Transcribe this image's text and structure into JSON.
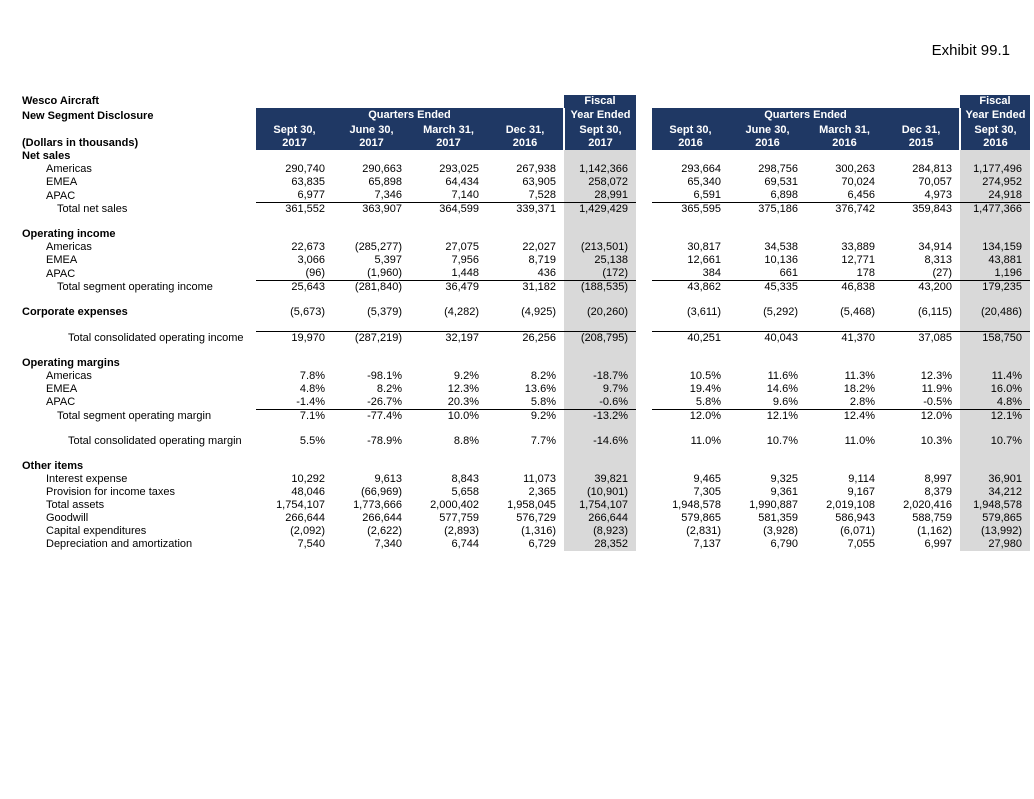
{
  "page": {
    "exhibit_label": "Exhibit 99.1"
  },
  "colors": {
    "header_navy": "#1f3864",
    "fiscal_gray": "#d9d9d9"
  },
  "table": {
    "title_lines": [
      "Wesco Aircraft",
      "New Segment Disclosure",
      "(Dollars in thousands)"
    ],
    "groups": [
      {
        "fiscal_word": "Fiscal",
        "year_ended_label": "Year Ended",
        "quarters_label": "Quarters Ended",
        "quarter_columns": [
          [
            "Sept 30,",
            "2017"
          ],
          [
            "June 30,",
            "2017"
          ],
          [
            "March 31,",
            "2017"
          ],
          [
            "Dec 31,",
            "2016"
          ]
        ],
        "fiscal_column": [
          "Sept 30,",
          "2017"
        ]
      },
      {
        "fiscal_word": "Fiscal",
        "year_ended_label": "Year Ended",
        "quarters_label": "Quarters Ended",
        "quarter_columns": [
          [
            "Sept 30,",
            "2016"
          ],
          [
            "June 30,",
            "2016"
          ],
          [
            "March 31,",
            "2016"
          ],
          [
            "Dec 31,",
            "2015"
          ]
        ],
        "fiscal_column": [
          "Sept 30,",
          "2016"
        ]
      }
    ],
    "rows": [
      {
        "label": "Net sales",
        "bold": true,
        "indent": 0
      },
      {
        "label": "Americas",
        "indent": 1,
        "values": [
          "290,740",
          "290,663",
          "293,025",
          "267,938",
          "1,142,366",
          "293,664",
          "298,756",
          "300,263",
          "284,813",
          "1,177,496"
        ]
      },
      {
        "label": "EMEA",
        "indent": 1,
        "values": [
          "63,835",
          "65,898",
          "64,434",
          "63,905",
          "258,072",
          "65,340",
          "69,531",
          "70,024",
          "70,057",
          "274,952"
        ]
      },
      {
        "label": "APAC",
        "indent": 1,
        "values": [
          "6,977",
          "7,346",
          "7,140",
          "7,528",
          "28,991",
          "6,591",
          "6,898",
          "6,456",
          "4,973",
          "24,918"
        ]
      },
      {
        "label": "Total net sales",
        "indent": 2,
        "topBorder": true,
        "values": [
          "361,552",
          "363,907",
          "364,599",
          "339,371",
          "1,429,429",
          "365,595",
          "375,186",
          "376,742",
          "359,843",
          "1,477,366"
        ]
      },
      {
        "spacer": true
      },
      {
        "label": "Operating income",
        "bold": true,
        "indent": 0
      },
      {
        "label": "Americas",
        "indent": 1,
        "values": [
          "22,673",
          "(285,277)",
          "27,075",
          "22,027",
          "(213,501)",
          "30,817",
          "34,538",
          "33,889",
          "34,914",
          "134,159"
        ]
      },
      {
        "label": "EMEA",
        "indent": 1,
        "values": [
          "3,066",
          "5,397",
          "7,956",
          "8,719",
          "25,138",
          "12,661",
          "10,136",
          "12,771",
          "8,313",
          "43,881"
        ]
      },
      {
        "label": "APAC",
        "indent": 1,
        "values": [
          "(96)",
          "(1,960)",
          "1,448",
          "436",
          "(172)",
          "384",
          "661",
          "178",
          "(27)",
          "1,196"
        ]
      },
      {
        "label": "Total segment operating income",
        "indent": 2,
        "topBorder": true,
        "values": [
          "25,643",
          "(281,840)",
          "36,479",
          "31,182",
          "(188,535)",
          "43,862",
          "45,335",
          "46,838",
          "43,200",
          "179,235"
        ]
      },
      {
        "spacer": true
      },
      {
        "label": "Corporate expenses",
        "bold": true,
        "indent": 0,
        "values": [
          "(5,673)",
          "(5,379)",
          "(4,282)",
          "(4,925)",
          "(20,260)",
          "(3,611)",
          "(5,292)",
          "(5,468)",
          "(6,115)",
          "(20,486)"
        ]
      },
      {
        "spacer": true
      },
      {
        "label": "Total consolidated operating income",
        "indent": 3,
        "topBorder": true,
        "values": [
          "19,970",
          "(287,219)",
          "32,197",
          "26,256",
          "(208,795)",
          "40,251",
          "40,043",
          "41,370",
          "37,085",
          "158,750"
        ]
      },
      {
        "spacer": true
      },
      {
        "label": "Operating margins",
        "bold": true,
        "indent": 0
      },
      {
        "label": "Americas",
        "indent": 1,
        "values": [
          "7.8%",
          "-98.1%",
          "9.2%",
          "8.2%",
          "-18.7%",
          "10.5%",
          "11.6%",
          "11.3%",
          "12.3%",
          "11.4%"
        ]
      },
      {
        "label": "EMEA",
        "indent": 1,
        "values": [
          "4.8%",
          "8.2%",
          "12.3%",
          "13.6%",
          "9.7%",
          "19.4%",
          "14.6%",
          "18.2%",
          "11.9%",
          "16.0%"
        ]
      },
      {
        "label": "APAC",
        "indent": 1,
        "values": [
          "-1.4%",
          "-26.7%",
          "20.3%",
          "5.8%",
          "-0.6%",
          "5.8%",
          "9.6%",
          "2.8%",
          "-0.5%",
          "4.8%"
        ]
      },
      {
        "label": "Total segment operating margin",
        "indent": 2,
        "topBorder": true,
        "values": [
          "7.1%",
          "-77.4%",
          "10.0%",
          "9.2%",
          "-13.2%",
          "12.0%",
          "12.1%",
          "12.4%",
          "12.0%",
          "12.1%"
        ]
      },
      {
        "spacer": true
      },
      {
        "label": "Total consolidated operating margin",
        "indent": 3,
        "values": [
          "5.5%",
          "-78.9%",
          "8.8%",
          "7.7%",
          "-14.6%",
          "11.0%",
          "10.7%",
          "11.0%",
          "10.3%",
          "10.7%"
        ]
      },
      {
        "spacer": true
      },
      {
        "label": "Other items",
        "bold": true,
        "indent": 0
      },
      {
        "label": "Interest expense",
        "indent": 1,
        "values": [
          "10,292",
          "9,613",
          "8,843",
          "11,073",
          "39,821",
          "9,465",
          "9,325",
          "9,114",
          "8,997",
          "36,901"
        ]
      },
      {
        "label": "Provision for income taxes",
        "indent": 1,
        "values": [
          "48,046",
          "(66,969)",
          "5,658",
          "2,365",
          "(10,901)",
          "7,305",
          "9,361",
          "9,167",
          "8,379",
          "34,212"
        ]
      },
      {
        "label": "Total assets",
        "indent": 1,
        "values": [
          "1,754,107",
          "1,773,666",
          "2,000,402",
          "1,958,045",
          "1,754,107",
          "1,948,578",
          "1,990,887",
          "2,019,108",
          "2,020,416",
          "1,948,578"
        ]
      },
      {
        "label": "Goodwill",
        "indent": 1,
        "values": [
          "266,644",
          "266,644",
          "577,759",
          "576,729",
          "266,644",
          "579,865",
          "581,359",
          "586,943",
          "588,759",
          "579,865"
        ]
      },
      {
        "label": "Capital expenditures",
        "indent": 1,
        "values": [
          "(2,092)",
          "(2,622)",
          "(2,893)",
          "(1,316)",
          "(8,923)",
          "(2,831)",
          "(3,928)",
          "(6,071)",
          "(1,162)",
          "(13,992)"
        ]
      },
      {
        "label": "Depreciation and amortization",
        "indent": 1,
        "values": [
          "7,540",
          "7,340",
          "6,744",
          "6,729",
          "28,352",
          "7,137",
          "6,790",
          "7,055",
          "6,997",
          "27,980"
        ]
      }
    ]
  }
}
